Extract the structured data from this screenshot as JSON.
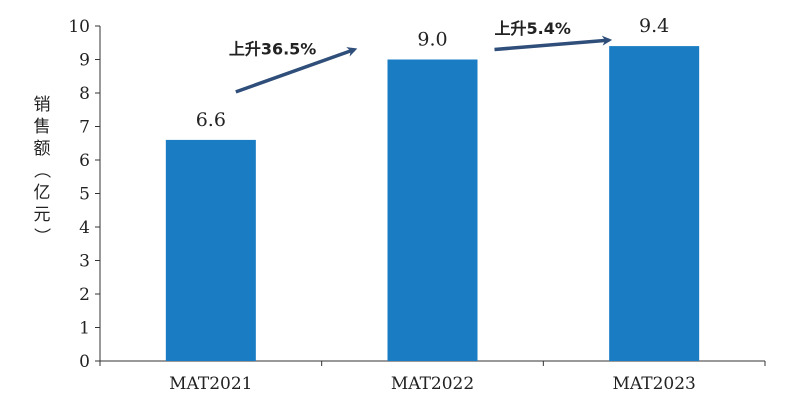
{
  "chart_data": {
    "type": "bar",
    "categories": [
      "MAT2021",
      "MAT2022",
      "MAT2023"
    ],
    "values": [
      6.6,
      9.0,
      9.4
    ],
    "value_labels": [
      "6.6",
      "9.0",
      "9.4"
    ],
    "ylabel": "销售额（亿元）",
    "ylim": [
      0,
      10
    ],
    "yticks": [
      "0",
      "1",
      "2",
      "3",
      "4",
      "5",
      "6",
      "7",
      "8",
      "9",
      "10"
    ],
    "grid": false,
    "bar_color": "#1a7dc4",
    "annotations": [
      {
        "text": "上升36.5%",
        "from": "MAT2021",
        "to": "MAT2022"
      },
      {
        "text": "上升5.4%",
        "from": "MAT2022",
        "to": "MAT2023"
      }
    ],
    "arrow_color": "#2f4e7a"
  }
}
